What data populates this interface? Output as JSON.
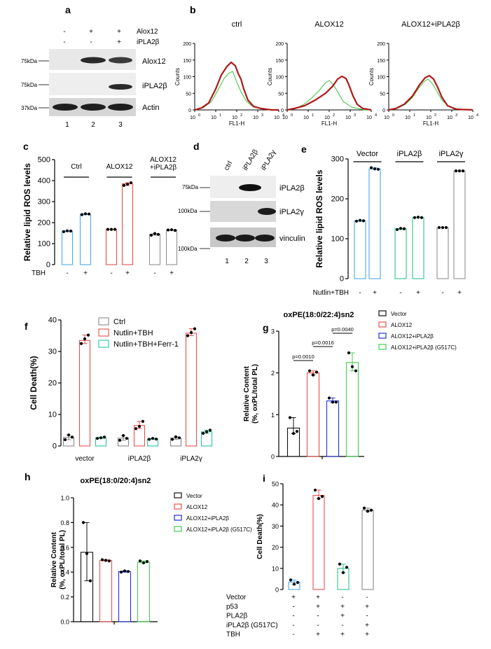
{
  "panels": {
    "a": "a",
    "b": "b",
    "c": "c",
    "d": "d",
    "e": "e",
    "f": "f",
    "g": "g",
    "h": "h",
    "i": "i"
  },
  "blot_a": {
    "cond_rows": [
      {
        "label": "Alox12",
        "signs": [
          "-",
          "+",
          "+"
        ]
      },
      {
        "label": "iPLA2β",
        "signs": [
          "-",
          "-",
          "+"
        ]
      }
    ],
    "bands": [
      {
        "label": "Alox12",
        "kda": "75kDa"
      },
      {
        "label": "iPLA2β",
        "kda": "75kDa"
      },
      {
        "label": "Actin",
        "kda": "37kDa"
      }
    ],
    "lanes": [
      "1",
      "2",
      "3"
    ]
  },
  "flow_b": {
    "titles": [
      "ctrl",
      "ALOX12",
      "ALOX12+iPLA2β"
    ],
    "ylabel": "Counts",
    "xlabel": "FL1-H",
    "yticks": [
      "0",
      "50",
      "100",
      "150",
      "200"
    ],
    "xticks": [
      "10",
      "10",
      "10",
      "10",
      "10"
    ],
    "xexp": [
      "0",
      "1",
      "2",
      "3",
      "4"
    ]
  },
  "blot_d": {
    "lanes_top": [
      "ctrl",
      "iPLA2β",
      "iPLA2γ"
    ],
    "bands": [
      {
        "label": "iPLA2β",
        "kda": "75kDa"
      },
      {
        "label": "iPLA2γ",
        "kda": "100kDa"
      },
      {
        "label": "vinculin",
        "kda": "100kDa"
      }
    ],
    "lanes": [
      "1",
      "2",
      "3"
    ]
  },
  "chart_data": [
    {
      "panel": "c",
      "type": "bar",
      "ylabel": "Relative lipid ROS levels",
      "ylim": [
        0,
        500
      ],
      "yticks": [
        0,
        100,
        200,
        300,
        400,
        500
      ],
      "groups": [
        "Ctrl",
        "ALOX12",
        "ALOX12\n+iPLA2β"
      ],
      "treatment_label": "TBH",
      "treatment": [
        "-",
        "+",
        "-",
        "+",
        "-",
        "+"
      ],
      "values": [
        160,
        240,
        168,
        385,
        145,
        165
      ],
      "points": [
        [
          157,
          161,
          160
        ],
        [
          238,
          242,
          241
        ],
        [
          168,
          168,
          168
        ],
        [
          377,
          383,
          390
        ],
        [
          140,
          148,
          144
        ],
        [
          165,
          166,
          163
        ]
      ],
      "colors": [
        "#4aa8e8",
        "#4aa8e8",
        "#e85050",
        "#e85050",
        "#909090",
        "#909090"
      ]
    },
    {
      "panel": "e",
      "type": "bar",
      "ylabel": "Relative lipid ROS levels",
      "ylim": [
        0,
        300
      ],
      "yticks": [
        0,
        100,
        200,
        300
      ],
      "groups": [
        "Vector",
        "iPLA2β",
        "iPLA2γ"
      ],
      "treatment_label": "Nutlin+TBH",
      "treatment": [
        "-",
        "+",
        "-",
        "+",
        "-",
        "+"
      ],
      "values": [
        145,
        275,
        125,
        153,
        128,
        270
      ],
      "points": [
        [
          144,
          146,
          145
        ],
        [
          278,
          275,
          274
        ],
        [
          123,
          126,
          125
        ],
        [
          153,
          154,
          153
        ],
        [
          128,
          128,
          128
        ],
        [
          270,
          270,
          270
        ]
      ],
      "colors": [
        "#4aa8e8",
        "#4aa8e8",
        "#2ec48a",
        "#2ec48a",
        "#909090",
        "#909090"
      ]
    },
    {
      "panel": "f",
      "type": "bar",
      "ylabel": "Cell Death(%)",
      "ylim": [
        0,
        40
      ],
      "yticks": [
        0,
        10,
        20,
        30,
        40
      ],
      "categories": [
        "vector",
        "iPLA2β",
        "iPLA2γ"
      ],
      "series": [
        {
          "name": "Ctrl",
          "color": "#888888",
          "values": [
            2.7,
            2.5,
            2.5
          ],
          "points": [
            [
              2,
              3.5,
              2.8
            ],
            [
              1.8,
              3.3,
              2.4
            ],
            [
              2.1,
              2.9,
              2.6
            ]
          ]
        },
        {
          "name": "Nutlin+TBH",
          "color": "#e85050",
          "values": [
            33.5,
            6.5,
            35.8
          ],
          "points": [
            [
              32.5,
              34,
              35.2
            ],
            [
              5.5,
              6.2,
              7.8
            ],
            [
              35,
              36,
              37.2
            ]
          ]
        },
        {
          "name": "Nutlin+TBH+Ferr-1",
          "color": "#2ec4a0",
          "values": [
            2.6,
            2.3,
            4.5
          ],
          "points": [
            [
              2.4,
              2.6,
              2.8
            ],
            [
              2.1,
              2.4,
              2.2
            ],
            [
              4,
              4.5,
              5
            ]
          ]
        }
      ]
    },
    {
      "panel": "g",
      "type": "bar",
      "title": "oxPE(18:0/22:4)sn2",
      "ylabel": "Relative Content\n(%, oxPL/total PL)",
      "ylim": [
        0,
        3
      ],
      "yticks": [
        "0",
        "1",
        "2",
        "3"
      ],
      "series": [
        {
          "name": "Vector",
          "color": "#111111",
          "value": 0.68,
          "points": [
            0.93,
            0.55,
            0.6
          ]
        },
        {
          "name": "ALOX12",
          "color": "#e85050",
          "value": 2.0,
          "points": [
            2.05,
            1.95,
            2.02
          ]
        },
        {
          "name": "ALOX12+iPLA2β",
          "color": "#2030d8",
          "value": 1.33,
          "points": [
            1.4,
            1.3,
            1.3
          ]
        },
        {
          "name": "ALOX12+iPLA2β (G517C)",
          "color": "#40d050",
          "value": 2.25,
          "points": [
            2.48,
            2.15,
            2.05
          ]
        }
      ],
      "pvalues": [
        "p=0.0010",
        "p=0.0016",
        "p=0.0040"
      ]
    },
    {
      "panel": "h",
      "type": "bar",
      "title": "oxPE(18:0/20:4)sn2",
      "ylabel": "Relative Content\n(%, oxPL/total PL)",
      "ylim": [
        0,
        1.0
      ],
      "yticks": [
        "0.0",
        "0.2",
        "0.4",
        "0.6",
        "0.8",
        "1.0"
      ],
      "series": [
        {
          "name": "Vector",
          "color": "#111111",
          "value": 0.56,
          "points": [
            0.8,
            0.55,
            0.33
          ]
        },
        {
          "name": "ALOX12",
          "color": "#e85050",
          "value": 0.495,
          "points": [
            0.5,
            0.495,
            0.49
          ]
        },
        {
          "name": "ALOX12+iPLA2β",
          "color": "#2030d8",
          "value": 0.405,
          "points": [
            0.4,
            0.41,
            0.405
          ]
        },
        {
          "name": "ALOX12+iPLA2β (G517C)",
          "color": "#40d050",
          "value": 0.48,
          "points": [
            0.49,
            0.475,
            0.485
          ]
        }
      ]
    },
    {
      "panel": "i",
      "type": "bar",
      "ylabel": "Cell Death(%)",
      "ylim": [
        0,
        50
      ],
      "yticks": [
        0,
        10,
        20,
        30,
        40,
        50
      ],
      "values": [
        3.5,
        44.5,
        10,
        37.5
      ],
      "points": [
        [
          4.5,
          2.5,
          3.3
        ],
        [
          47,
          43,
          44
        ],
        [
          12,
          8,
          10.5
        ],
        [
          38.5,
          37,
          37.5
        ]
      ],
      "colors": [
        "#4aa8e8",
        "#e85050",
        "#2ec48a",
        "#888888"
      ],
      "treatments": [
        {
          "label": "Vector",
          "signs": [
            "+",
            "+",
            "-",
            "-"
          ]
        },
        {
          "label": "p53",
          "signs": [
            "-",
            "+",
            "+",
            "+"
          ]
        },
        {
          "label": "PLA2β",
          "signs": [
            "-",
            "-",
            "+",
            "-"
          ]
        },
        {
          "label": "iPLA2β (G517C)",
          "signs": [
            "-",
            "-",
            "-",
            "+"
          ]
        },
        {
          "label": "TBH",
          "signs": [
            "-",
            "+",
            "+",
            "+"
          ]
        }
      ]
    }
  ]
}
